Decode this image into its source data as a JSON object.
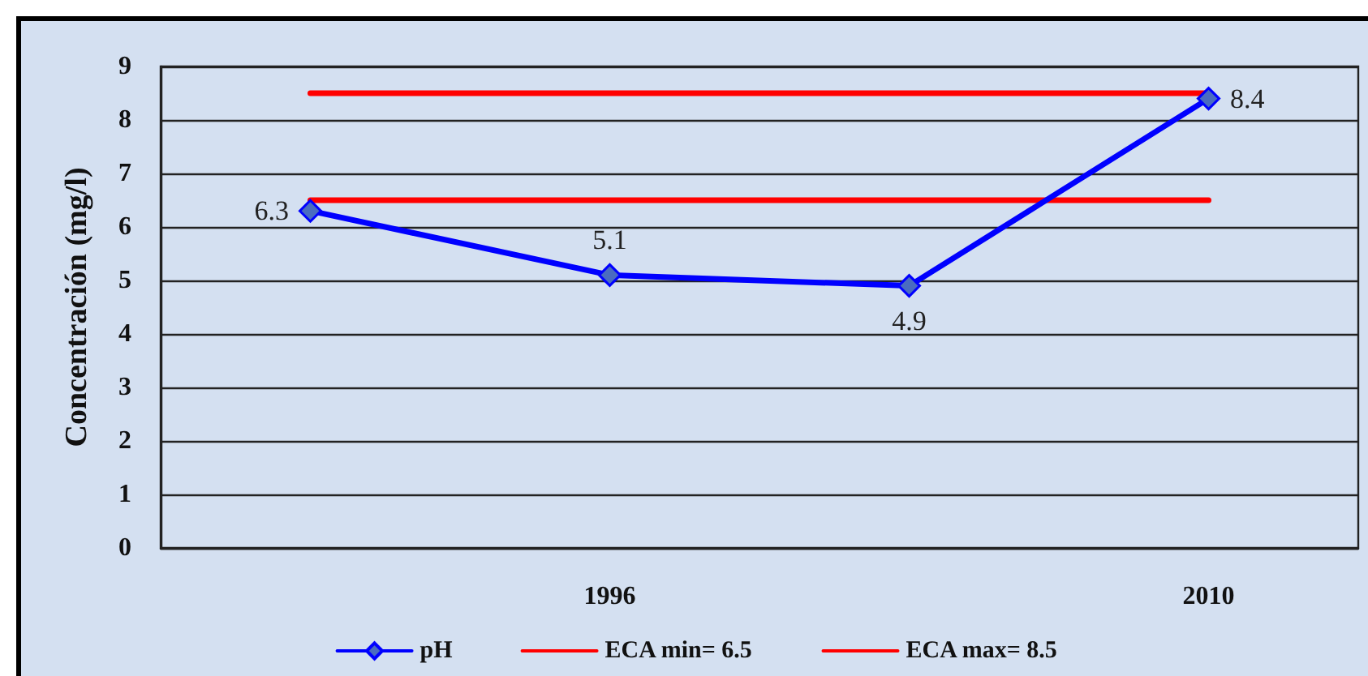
{
  "chart_data": {
    "type": "line",
    "ylabel": "Concentración (mg/l)",
    "categories": [
      null,
      "1996",
      null,
      "2010"
    ],
    "series": [
      {
        "name": "pH",
        "color": "#0000ff",
        "values": [
          6.3,
          5.1,
          4.9,
          8.4
        ],
        "marker": "diamond",
        "data_labels": true
      },
      {
        "name": "ECA min= 6.5",
        "color": "#ff0000",
        "values": [
          6.5,
          6.5,
          6.5,
          6.5
        ],
        "marker": "none"
      },
      {
        "name": "ECA max= 8.5",
        "color": "#ff0000",
        "values": [
          8.5,
          8.5,
          8.5,
          8.5
        ],
        "marker": "none"
      }
    ],
    "ylim": [
      0,
      9
    ],
    "yticks": [
      0,
      1,
      2,
      3,
      4,
      5,
      6,
      7,
      8,
      9
    ],
    "grid": "y",
    "legend": "bottom"
  }
}
